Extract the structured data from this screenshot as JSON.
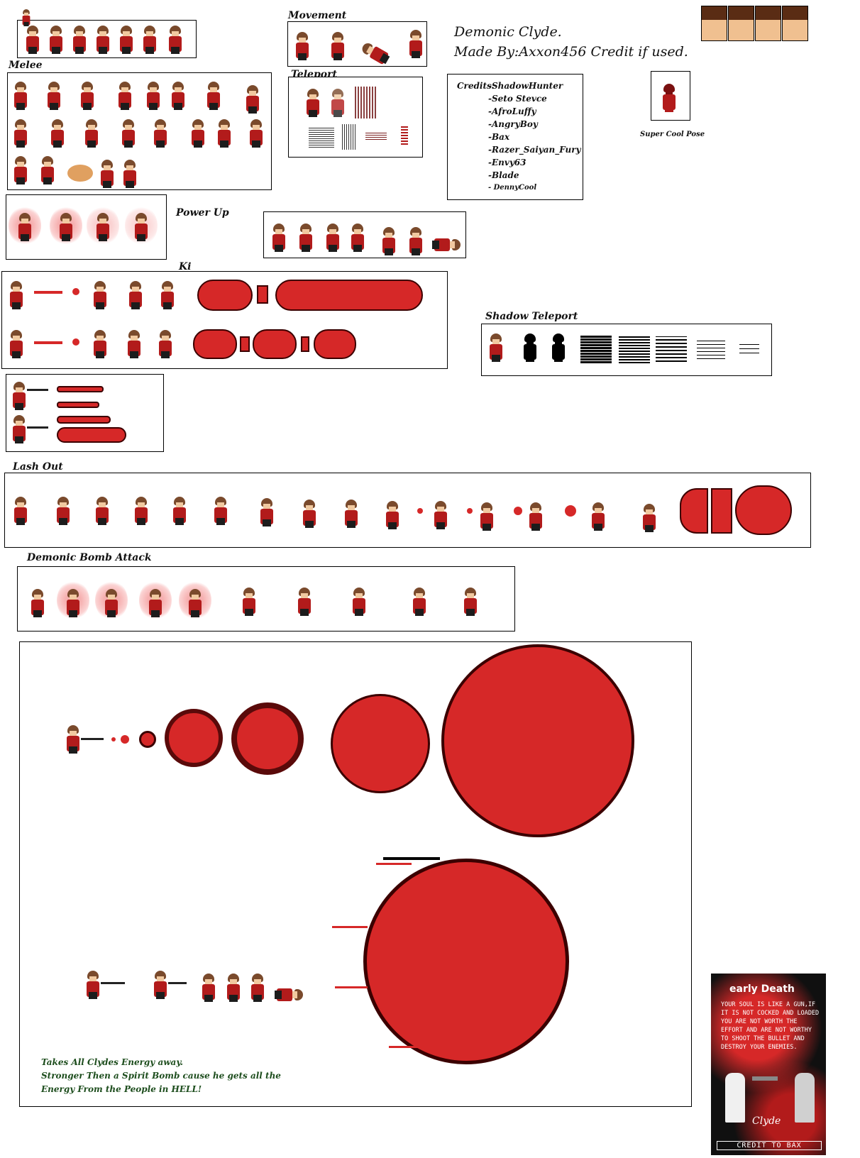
{
  "header": {
    "title": "Demonic Clyde.",
    "made_by": "Made By:Axxon456 Credit if used."
  },
  "sections": {
    "movement": "Movement",
    "melee": "Melee",
    "teleport": "Teleport",
    "power_up": "Power Up",
    "ki": "Ki",
    "shadow_teleport": "Shadow Teleport",
    "lash_out": "Lash Out",
    "demonic_bomb": "Demonic Bomb Attack",
    "super_cool_pose": "Super Cool Pose"
  },
  "credits": {
    "heading": "Credits:",
    "names": [
      "-ShadowHunter",
      "-Seto Stevce",
      "-AfroLuffy",
      "-AngryBoy",
      "-Bax",
      "-Razer_Saiyan_Fury",
      "-Envy63",
      "-Blade",
      "- DennyCool"
    ]
  },
  "bomb_description": [
    "Takes All Clydes Energy away.",
    "Stronger Then a Spirit Bomb cause he gets all the",
    "Energy From the People in HELL!"
  ],
  "poster": {
    "title": "early Death",
    "body": "YOUR SOUL IS LIKE A GUN,IF IT IS NOT COCKED AND LOADED YOU ARE NOT WORTH THE EFFORT AND ARE NOT WORTHY TO SHOOT THE BULLET AND DESTROY YOUR ENEMIES.",
    "name": "Clyde",
    "footer": "CREDIT TO BAX"
  },
  "colors": {
    "coat": "#b21b1b",
    "energy": "#d62828",
    "energy_outline": "#3b0000",
    "label_green": "#1d4d1d"
  }
}
